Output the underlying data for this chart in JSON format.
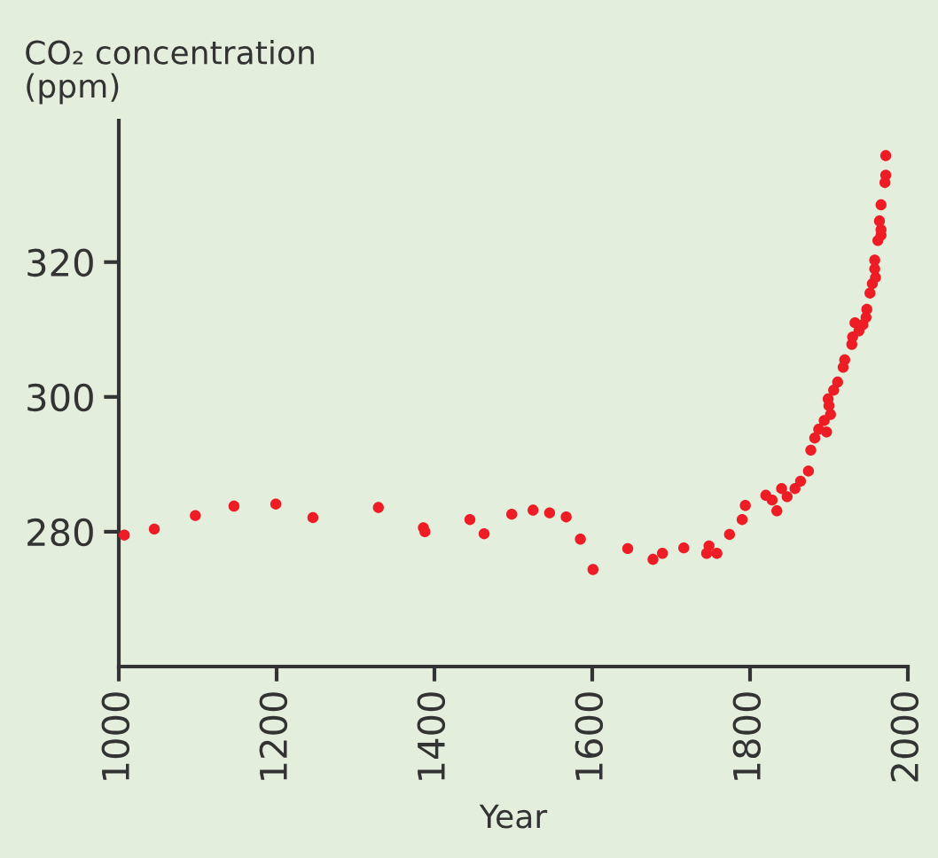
{
  "chart_data": {
    "type": "scatter",
    "xlabel": "Year",
    "ylabel": "CO₂ concentration\n(ppm)",
    "x": [
      1007,
      1045,
      1097,
      1146,
      1199,
      1246,
      1329,
      1386,
      1388,
      1445,
      1463,
      1498,
      1525,
      1546,
      1567,
      1585,
      1601,
      1645,
      1677,
      1689,
      1716,
      1745,
      1748,
      1758,
      1774,
      1790,
      1794,
      1820,
      1828,
      1834,
      1840,
      1847,
      1857,
      1864,
      1874,
      1877,
      1882,
      1887,
      1897,
      1894,
      1902,
      1900,
      1899,
      1906,
      1911,
      1918,
      1920,
      1929,
      1930,
      1933,
      1938,
      1943,
      1947,
      1948,
      1952,
      1955,
      1959,
      1958,
      1958,
      1962,
      1966,
      1966,
      1964,
      1966,
      1971,
      1972,
      1972
    ],
    "series": [
      {
        "color": "#ee1c25",
        "values": [
          279.5,
          280.4,
          282.4,
          283.8,
          284.1,
          282.1,
          283.6,
          280.6,
          280,
          281.8,
          279.7,
          282.6,
          283.2,
          282.8,
          282.2,
          278.9,
          274.4,
          277.5,
          275.9,
          276.8,
          277.6,
          276.8,
          277.9,
          276.8,
          279.6,
          281.8,
          283.9,
          285.4,
          284.7,
          283.1,
          286.4,
          285.2,
          286.4,
          287.5,
          289,
          292.1,
          293.9,
          295.2,
          294.8,
          296.5,
          297.4,
          298.7,
          299.7,
          301,
          302.2,
          304.4,
          305.5,
          307.8,
          308.9,
          311,
          309.8,
          310.7,
          311.8,
          313,
          315.4,
          316.8,
          317.7,
          319,
          320.3,
          323.2,
          324,
          324.8,
          326.1,
          328.5,
          331.8,
          332.9,
          335.8
        ]
      }
    ],
    "xlim": [
      1000,
      2000
    ],
    "xticks": [
      1000,
      1200,
      1400,
      1600,
      1800,
      2000
    ],
    "ylim": [
      260,
      341
    ],
    "yticks": [
      280,
      300,
      320
    ],
    "marker": "circle",
    "grid": false,
    "legend": false
  }
}
